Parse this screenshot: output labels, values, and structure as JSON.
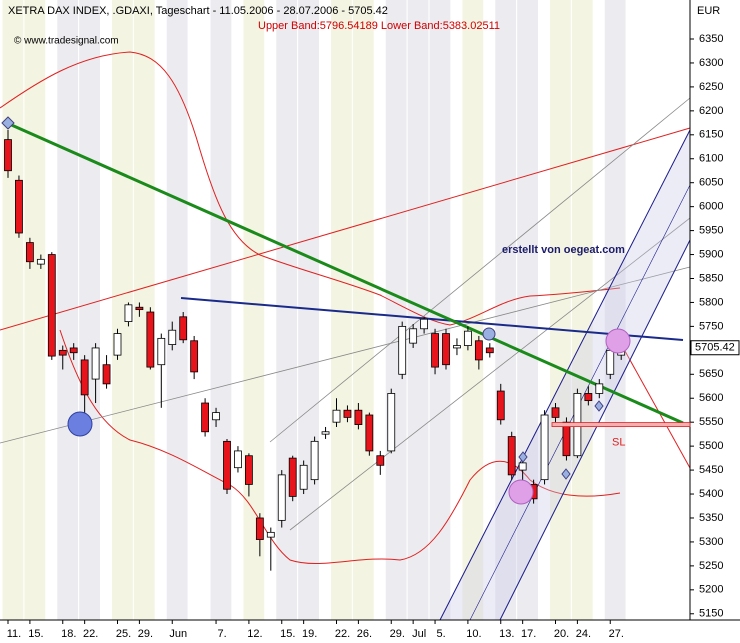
{
  "header": {
    "title": "XETRA DAX INDEX, .GDAXI, Tageschart - 11.05.2006 - 28.07.2006 - 5705.42",
    "bands": "Upper Band:5796.54189 Lower Band:5383.02511",
    "credit": "© www.tradesignal.com",
    "author": "erstellt von oegeat.com"
  },
  "chart_data": {
    "type": "candlestick",
    "y_unit": "EUR",
    "categories": [
      "11.",
      null,
      "15.",
      null,
      null,
      "18.",
      null,
      "22.",
      null,
      null,
      "25.",
      null,
      "29.",
      null,
      null,
      "Jun",
      null,
      null,
      null,
      "7.",
      null,
      null,
      "12.",
      null,
      null,
      "15.",
      null,
      "19.",
      null,
      null,
      "22.",
      null,
      "26.",
      null,
      null,
      "29.",
      null,
      "Jul",
      null,
      "5.",
      null,
      null,
      "10.",
      null,
      null,
      "13.",
      null,
      "17.",
      null,
      null,
      "20.",
      null,
      "24.",
      null,
      null,
      "27.",
      null
    ],
    "open": [
      6140,
      6055,
      5925,
      5880,
      5900,
      5700,
      5705,
      5680,
      5640,
      5670,
      5690,
      5760,
      5790,
      5780,
      5670,
      5712,
      5770,
      5720,
      5590,
      5555,
      5510,
      5455,
      5480,
      5350,
      5310,
      5345,
      5475,
      5410,
      5430,
      5525,
      5550,
      5575,
      5575,
      5565,
      5480,
      5490,
      5650,
      5715,
      5745,
      5735,
      5735,
      5705,
      5710,
      5720,
      5705,
      5615,
      5520,
      5450,
      5420,
      5430,
      5580,
      5550,
      5480,
      5610,
      5610,
      5650,
      5690
    ],
    "high": [
      6160,
      6065,
      5935,
      5900,
      5905,
      5710,
      5715,
      5690,
      5715,
      5690,
      5745,
      5800,
      5800,
      5790,
      5735,
      5760,
      5780,
      5730,
      5600,
      5580,
      5515,
      5500,
      5485,
      5360,
      5330,
      5450,
      5480,
      5470,
      5520,
      5540,
      5600,
      5585,
      5590,
      5570,
      5490,
      5620,
      5760,
      5755,
      5770,
      5745,
      5745,
      5725,
      5750,
      5730,
      5715,
      5630,
      5530,
      5475,
      5430,
      5575,
      5590,
      5560,
      5620,
      5625,
      5640,
      5715,
      5720
    ],
    "low": [
      6060,
      5935,
      5870,
      5870,
      5680,
      5660,
      5680,
      5560,
      5590,
      5620,
      5680,
      5750,
      5770,
      5660,
      5580,
      5700,
      5715,
      5640,
      5520,
      5540,
      5400,
      5445,
      5395,
      5270,
      5240,
      5330,
      5385,
      5400,
      5420,
      5515,
      5540,
      5550,
      5535,
      5480,
      5440,
      5485,
      5640,
      5705,
      5735,
      5650,
      5660,
      5690,
      5700,
      5660,
      5685,
      5545,
      5430,
      5400,
      5380,
      5420,
      5550,
      5470,
      5475,
      5585,
      5600,
      5640,
      5680
    ],
    "close": [
      6075,
      5945,
      5885,
      5890,
      5688,
      5690,
      5695,
      5607,
      5705,
      5630,
      5735,
      5795,
      5785,
      5665,
      5725,
      5742,
      5722,
      5655,
      5530,
      5570,
      5410,
      5490,
      5420,
      5305,
      5320,
      5440,
      5395,
      5460,
      5510,
      5530,
      5575,
      5560,
      5545,
      5490,
      5460,
      5610,
      5750,
      5745,
      5765,
      5665,
      5670,
      5710,
      5740,
      5680,
      5695,
      5555,
      5440,
      5465,
      5390,
      5565,
      5560,
      5480,
      5610,
      5595,
      5630,
      5700,
      5705.42
    ],
    "up_color": "#ffffff",
    "down_color": "#e8141c",
    "last_value": 5705.42,
    "stop_loss": {
      "label": "SL",
      "value": 5545
    },
    "ylim": [
      5137,
      6421
    ],
    "yticks": [
      5150,
      5200,
      5250,
      5300,
      5350,
      5400,
      5450,
      5500,
      5550,
      5600,
      5650,
      5700,
      5750,
      5800,
      5850,
      5900,
      5950,
      6000,
      6050,
      6100,
      6150,
      6200,
      6250,
      6300,
      6350
    ]
  }
}
